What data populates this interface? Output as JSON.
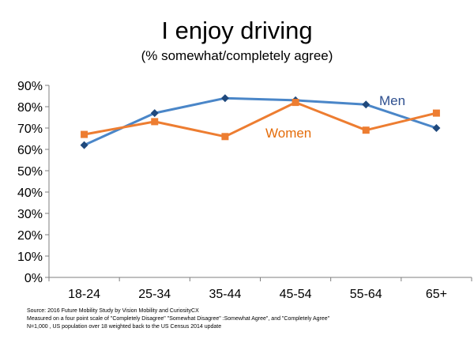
{
  "title": "I enjoy driving",
  "subtitle": "(% somewhat/completely agree)",
  "source_lines": [
    "Source: 2016  Future Mobility Study by Vision Mobility and CuriosityCX",
    "Measured on a four point scale of \"Completely Disagree\" \"Somewhat Disagree\" :Somewhat Agree\", and \"Completely Agree\"",
    "N=1,000 , US population over 18 weighted back to the US Census 2014 update"
  ],
  "chart_data": {
    "type": "line",
    "categories": [
      "18-24",
      "25-34",
      "35-44",
      "45-54",
      "55-64",
      "65+"
    ],
    "ylim": [
      0,
      90
    ],
    "y_ticks": [
      0,
      10,
      20,
      30,
      40,
      50,
      60,
      70,
      80,
      90
    ],
    "y_tick_labels": [
      "0%",
      "10%",
      "20%",
      "30%",
      "40%",
      "50%",
      "60%",
      "70%",
      "80%",
      "90%"
    ],
    "grid": false,
    "series": [
      {
        "name": "Men",
        "values": [
          62,
          77,
          84,
          83,
          81,
          70
        ],
        "color": "#4a86c8",
        "label_color": "#2e4f8f",
        "marker": "diamond"
      },
      {
        "name": "Women",
        "values": [
          67,
          73,
          66,
          82,
          69,
          77
        ],
        "color": "#ed7d31",
        "label_color": "#e46c0a",
        "marker": "square"
      }
    ]
  }
}
